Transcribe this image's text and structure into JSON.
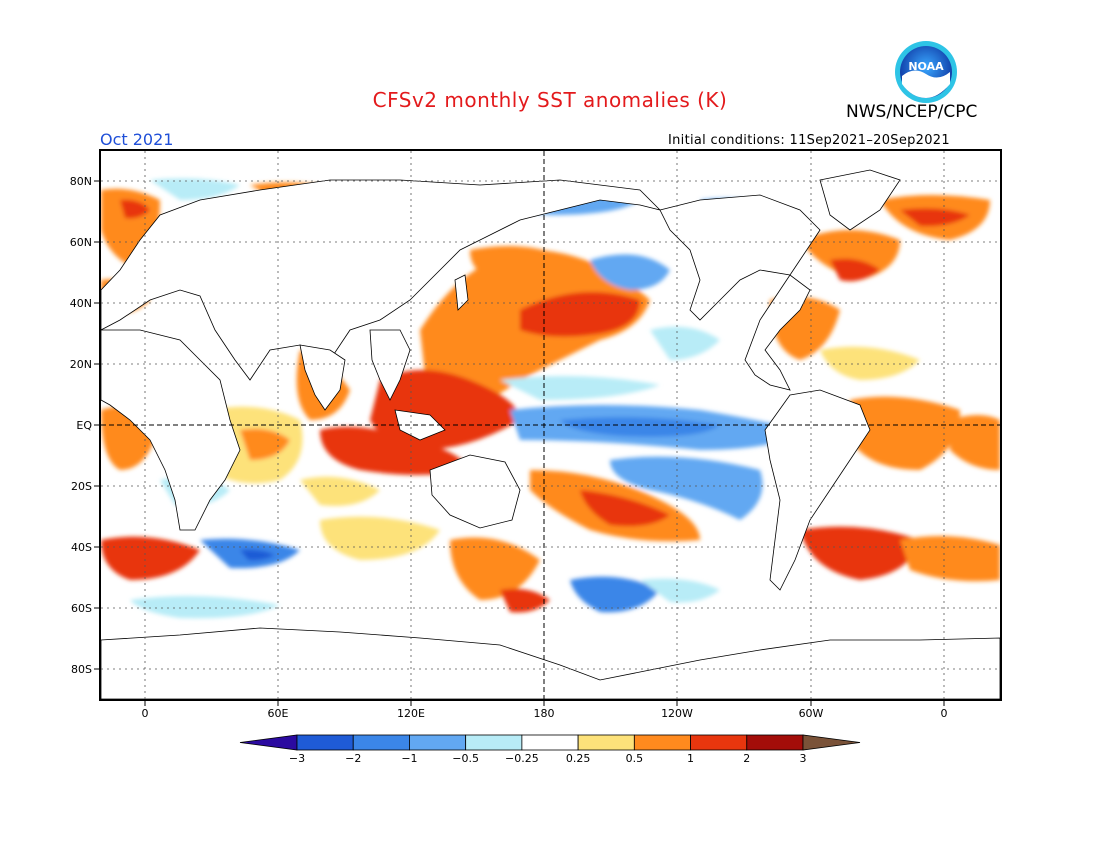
{
  "header": {
    "title": "CFSv2 monthly SST anomalies (K)",
    "agency": "NWS/NCEP/CPC",
    "logo_text": "NOAA",
    "month": "Oct 2021",
    "initial_conditions": "Initial conditions: 11Sep2021–20Sep2021"
  },
  "map": {
    "projection": "cylindrical equidistant",
    "lon_range": [
      -20,
      20
    ],
    "lat_range": [
      -90,
      90
    ],
    "lat_labels": [
      "80N",
      "60N",
      "40N",
      "20N",
      "EQ",
      "20S",
      "40S",
      "60S",
      "80S"
    ],
    "lon_labels": [
      "0",
      "60E",
      "120E",
      "180",
      "120W",
      "60W",
      "0"
    ],
    "land_color": "#ffffff",
    "gridlines": "dotted"
  },
  "legend": {
    "tick_labels": [
      "−3",
      "−2",
      "−1",
      "−0.5",
      "−0.25",
      "0.25",
      "0.5",
      "1",
      "2",
      "3"
    ],
    "colors": [
      "#2b0aa0",
      "#1f5bd6",
      "#3b86e8",
      "#62a8f2",
      "#b8ecf7",
      "#ffffff",
      "#fde27a",
      "#ff8a1e",
      "#e8360e",
      "#a30d09",
      "#7a5238"
    ]
  }
}
